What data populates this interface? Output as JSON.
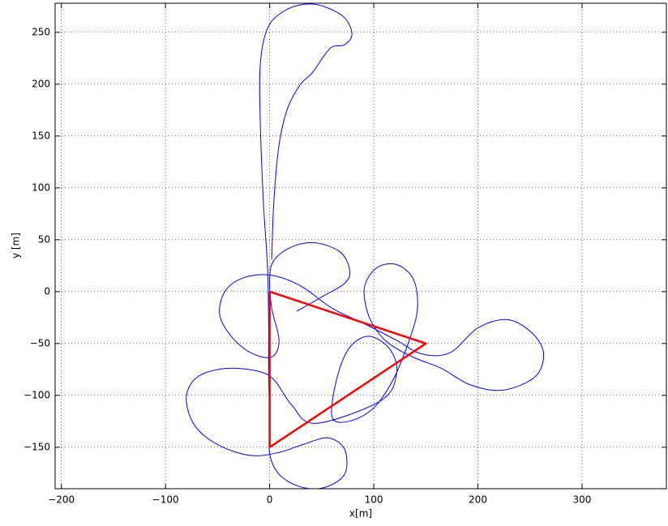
{
  "chart_data": {
    "type": "line",
    "xlabel": "x[m]",
    "ylabel": "y [m]",
    "xlim": [
      -206,
      381
    ],
    "ylim": [
      -190,
      278
    ],
    "xticks": [
      {
        "value": -200,
        "label": "−200"
      },
      {
        "value": -100,
        "label": "−100"
      },
      0,
      100,
      200,
      300
    ],
    "yticks": [
      {
        "value": -150,
        "label": "−150"
      },
      {
        "value": -100,
        "label": "−100"
      },
      {
        "value": -50,
        "label": "−50"
      },
      0,
      50,
      100,
      150,
      200,
      250
    ],
    "grid": true,
    "series": [
      {
        "color": "#0000ff",
        "line_width": 1,
        "x": [
          26,
          52,
          72,
          77,
          68,
          44,
          21,
          4,
          0,
          2,
          9,
          2,
          -18,
          -37,
          -48,
          -43,
          -26,
          0,
          29,
          60,
          91,
          122,
          146,
          173,
          200,
          228,
          251,
          263,
          255,
          224,
          193,
          165,
          142,
          122,
          107,
          95,
          91,
          103,
          122,
          138,
          142,
          134,
          118,
          99,
          76,
          60,
          64,
          76,
          95,
          115,
          122,
          107,
          44,
          21,
          5,
          -10,
          -41,
          -69,
          -80,
          -72,
          -49,
          -18,
          9,
          33,
          56,
          72,
          72,
          52,
          29,
          9,
          0,
          0,
          -1,
          -1,
          -2,
          -6,
          -9,
          -9,
          -2,
          13,
          33,
          52,
          72,
          79,
          72,
          60,
          52,
          41,
          29,
          17,
          9,
          4,
          2
        ],
        "values": [
          -19,
          -4,
          8,
          20,
          38,
          47,
          43,
          30,
          12,
          -16,
          -47,
          -63,
          -59,
          -43,
          -22,
          0,
          13,
          16,
          6,
          -16,
          -31,
          -47,
          -60,
          -59,
          -35,
          -27,
          -39,
          -59,
          -82,
          -95,
          -90,
          -74,
          -65,
          -55,
          -43,
          -23,
          4,
          23,
          26,
          12,
          -16,
          -47,
          -86,
          -113,
          -125,
          -121,
          -86,
          -55,
          -43,
          -55,
          -78,
          -105,
          -127,
          -109,
          -86,
          -77,
          -74,
          -82,
          -102,
          -129,
          -148,
          -158,
          -155,
          -147,
          -141,
          -152,
          -176,
          -189,
          -188,
          -176,
          -156,
          -125,
          -78,
          -31,
          23,
          86,
          164,
          219,
          254,
          270,
          277,
          275,
          264,
          248,
          238,
          236,
          227,
          211,
          199,
          176,
          141,
          86,
          31
        ]
      },
      {
        "color": "#ff0000",
        "line_width": 2.5,
        "x": [
          0,
          150,
          0,
          0
        ],
        "values": [
          0,
          -50,
          -150,
          0
        ]
      }
    ]
  }
}
